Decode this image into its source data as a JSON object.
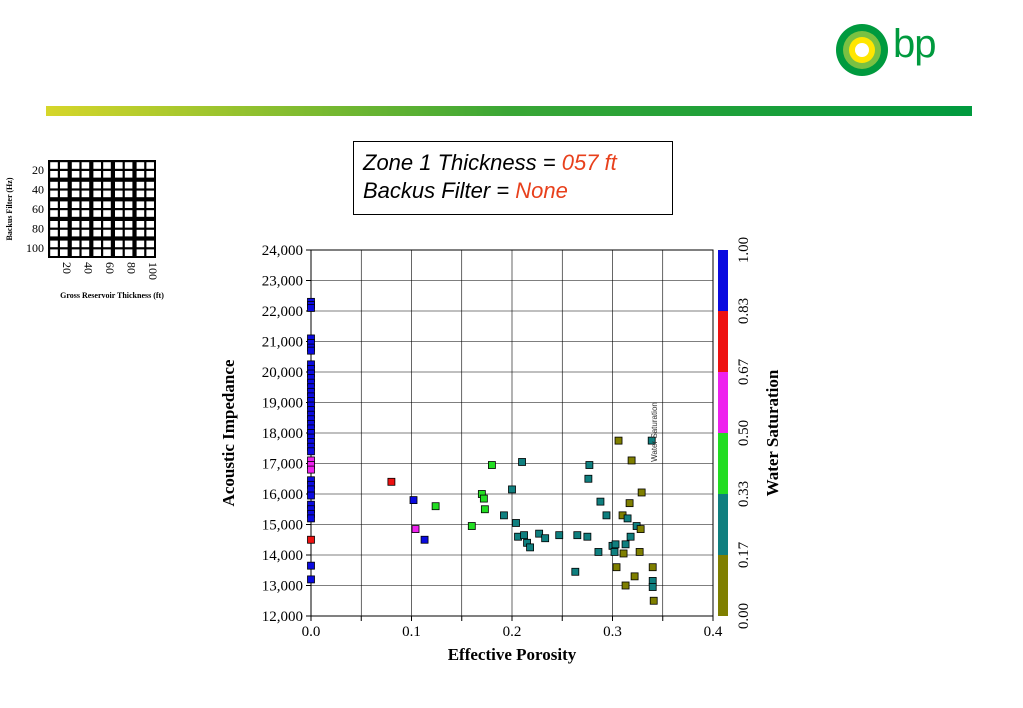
{
  "header": {
    "logo_text": "bp",
    "band_colors": [
      "#d6d62a",
      "#3aa635",
      "#009a3e"
    ]
  },
  "title_box": {
    "line1_label": "Zone 1 Thickness = ",
    "line1_value": "057 ft",
    "line2_label": "Backus Filter = ",
    "line2_value": "None",
    "highlight_color": "#e8401c"
  },
  "mini_grid": {
    "ylabel": "Backus Filter (Hz)",
    "xlabel": "Gross Reservoir Thickness (ft)",
    "y_ticks": [
      "20",
      "40",
      "60",
      "80",
      "100"
    ],
    "x_ticks": [
      "20",
      "40",
      "60",
      "80",
      "100"
    ],
    "rows": 5,
    "cols": 5
  },
  "chart_data": {
    "type": "scatter",
    "title": "",
    "xlabel": "Effective Porosity",
    "ylabel": "Acoustic Impedance",
    "xlim": [
      0.0,
      0.4
    ],
    "ylim": [
      12000,
      24000
    ],
    "x_ticks": [
      "0.0",
      "0.1",
      "0.2",
      "0.3",
      "0.4"
    ],
    "y_ticks": [
      "12,000",
      "13,000",
      "14,000",
      "15,000",
      "16,000",
      "17,000",
      "18,000",
      "19,000",
      "20,000",
      "21,000",
      "22,000",
      "23,000",
      "24,000"
    ],
    "grid": true,
    "colorbar": {
      "label": "Water Saturation",
      "ticks": [
        "0.00",
        "0.17",
        "0.33",
        "0.50",
        "0.67",
        "0.83",
        "1.00"
      ],
      "bands": [
        "#7f7f00",
        "#0f7f7f",
        "#22dd22",
        "#ee22ee",
        "#ee1111",
        "#0a0ae0"
      ]
    },
    "annotation": "Water Saturation",
    "points": [
      {
        "x": 0.0,
        "y": 22300,
        "sw": 0.95
      },
      {
        "x": 0.0,
        "y": 22200,
        "sw": 0.95
      },
      {
        "x": 0.0,
        "y": 22100,
        "sw": 0.95
      },
      {
        "x": 0.0,
        "y": 21100,
        "sw": 0.95
      },
      {
        "x": 0.0,
        "y": 20950,
        "sw": 0.95
      },
      {
        "x": 0.0,
        "y": 20800,
        "sw": 0.95
      },
      {
        "x": 0.0,
        "y": 20700,
        "sw": 0.95
      },
      {
        "x": 0.0,
        "y": 20250,
        "sw": 0.95
      },
      {
        "x": 0.0,
        "y": 20100,
        "sw": 0.95
      },
      {
        "x": 0.0,
        "y": 19950,
        "sw": 0.95
      },
      {
        "x": 0.0,
        "y": 19800,
        "sw": 0.95
      },
      {
        "x": 0.0,
        "y": 19650,
        "sw": 0.95
      },
      {
        "x": 0.0,
        "y": 19500,
        "sw": 0.95
      },
      {
        "x": 0.0,
        "y": 19350,
        "sw": 0.95
      },
      {
        "x": 0.0,
        "y": 19200,
        "sw": 0.95
      },
      {
        "x": 0.0,
        "y": 19050,
        "sw": 0.95
      },
      {
        "x": 0.0,
        "y": 18900,
        "sw": 0.95
      },
      {
        "x": 0.0,
        "y": 18750,
        "sw": 0.95
      },
      {
        "x": 0.0,
        "y": 18600,
        "sw": 0.95
      },
      {
        "x": 0.0,
        "y": 18450,
        "sw": 0.95
      },
      {
        "x": 0.0,
        "y": 18300,
        "sw": 0.95
      },
      {
        "x": 0.0,
        "y": 18150,
        "sw": 0.95
      },
      {
        "x": 0.0,
        "y": 18000,
        "sw": 0.95
      },
      {
        "x": 0.0,
        "y": 17850,
        "sw": 0.95
      },
      {
        "x": 0.0,
        "y": 17700,
        "sw": 0.95
      },
      {
        "x": 0.0,
        "y": 17550,
        "sw": 0.95
      },
      {
        "x": 0.0,
        "y": 17400,
        "sw": 0.95
      },
      {
        "x": 0.0,
        "y": 17100,
        "sw": 0.6
      },
      {
        "x": 0.0,
        "y": 16950,
        "sw": 0.6
      },
      {
        "x": 0.0,
        "y": 16800,
        "sw": 0.6
      },
      {
        "x": 0.0,
        "y": 16450,
        "sw": 0.95
      },
      {
        "x": 0.0,
        "y": 16300,
        "sw": 0.95
      },
      {
        "x": 0.0,
        "y": 16150,
        "sw": 0.95
      },
      {
        "x": 0.0,
        "y": 15950,
        "sw": 0.95
      },
      {
        "x": 0.0,
        "y": 15650,
        "sw": 0.95
      },
      {
        "x": 0.0,
        "y": 15500,
        "sw": 0.95
      },
      {
        "x": 0.0,
        "y": 15350,
        "sw": 0.95
      },
      {
        "x": 0.0,
        "y": 15200,
        "sw": 0.95
      },
      {
        "x": 0.0,
        "y": 14500,
        "sw": 0.75
      },
      {
        "x": 0.0,
        "y": 13650,
        "sw": 0.95
      },
      {
        "x": 0.0,
        "y": 13200,
        "sw": 0.95
      },
      {
        "x": 0.08,
        "y": 16400,
        "sw": 0.75
      },
      {
        "x": 0.102,
        "y": 15800,
        "sw": 0.95
      },
      {
        "x": 0.104,
        "y": 14850,
        "sw": 0.6
      },
      {
        "x": 0.113,
        "y": 14500,
        "sw": 0.95
      },
      {
        "x": 0.124,
        "y": 15600,
        "sw": 0.4
      },
      {
        "x": 0.16,
        "y": 14950,
        "sw": 0.4
      },
      {
        "x": 0.17,
        "y": 16000,
        "sw": 0.4
      },
      {
        "x": 0.172,
        "y": 15850,
        "sw": 0.4
      },
      {
        "x": 0.173,
        "y": 15500,
        "sw": 0.4
      },
      {
        "x": 0.18,
        "y": 16950,
        "sw": 0.4
      },
      {
        "x": 0.192,
        "y": 15300,
        "sw": 0.25
      },
      {
        "x": 0.2,
        "y": 16150,
        "sw": 0.25
      },
      {
        "x": 0.204,
        "y": 15050,
        "sw": 0.25
      },
      {
        "x": 0.206,
        "y": 14600,
        "sw": 0.25
      },
      {
        "x": 0.21,
        "y": 17050,
        "sw": 0.25
      },
      {
        "x": 0.212,
        "y": 14650,
        "sw": 0.25
      },
      {
        "x": 0.215,
        "y": 14400,
        "sw": 0.25
      },
      {
        "x": 0.218,
        "y": 14250,
        "sw": 0.25
      },
      {
        "x": 0.227,
        "y": 14700,
        "sw": 0.25
      },
      {
        "x": 0.233,
        "y": 14550,
        "sw": 0.25
      },
      {
        "x": 0.247,
        "y": 14650,
        "sw": 0.25
      },
      {
        "x": 0.263,
        "y": 13450,
        "sw": 0.25
      },
      {
        "x": 0.265,
        "y": 14650,
        "sw": 0.25
      },
      {
        "x": 0.275,
        "y": 14600,
        "sw": 0.25
      },
      {
        "x": 0.276,
        "y": 16500,
        "sw": 0.25
      },
      {
        "x": 0.277,
        "y": 16950,
        "sw": 0.25
      },
      {
        "x": 0.286,
        "y": 14100,
        "sw": 0.25
      },
      {
        "x": 0.288,
        "y": 15750,
        "sw": 0.25
      },
      {
        "x": 0.294,
        "y": 15300,
        "sw": 0.25
      },
      {
        "x": 0.3,
        "y": 14300,
        "sw": 0.25
      },
      {
        "x": 0.302,
        "y": 14100,
        "sw": 0.25
      },
      {
        "x": 0.303,
        "y": 14350,
        "sw": 0.25
      },
      {
        "x": 0.304,
        "y": 13600,
        "sw": 0.1
      },
      {
        "x": 0.306,
        "y": 17750,
        "sw": 0.1
      },
      {
        "x": 0.31,
        "y": 15300,
        "sw": 0.1
      },
      {
        "x": 0.311,
        "y": 14050,
        "sw": 0.1
      },
      {
        "x": 0.313,
        "y": 14350,
        "sw": 0.25
      },
      {
        "x": 0.313,
        "y": 13000,
        "sw": 0.1
      },
      {
        "x": 0.315,
        "y": 15200,
        "sw": 0.25
      },
      {
        "x": 0.317,
        "y": 15700,
        "sw": 0.1
      },
      {
        "x": 0.318,
        "y": 14600,
        "sw": 0.25
      },
      {
        "x": 0.319,
        "y": 17100,
        "sw": 0.1
      },
      {
        "x": 0.322,
        "y": 13300,
        "sw": 0.1
      },
      {
        "x": 0.324,
        "y": 14950,
        "sw": 0.25
      },
      {
        "x": 0.327,
        "y": 14100,
        "sw": 0.1
      },
      {
        "x": 0.328,
        "y": 14850,
        "sw": 0.1
      },
      {
        "x": 0.329,
        "y": 16050,
        "sw": 0.1
      },
      {
        "x": 0.339,
        "y": 17750,
        "sw": 0.25
      },
      {
        "x": 0.34,
        "y": 13600,
        "sw": 0.1
      },
      {
        "x": 0.34,
        "y": 13150,
        "sw": 0.25
      },
      {
        "x": 0.34,
        "y": 12950,
        "sw": 0.25
      },
      {
        "x": 0.341,
        "y": 12500,
        "sw": 0.1
      }
    ]
  }
}
